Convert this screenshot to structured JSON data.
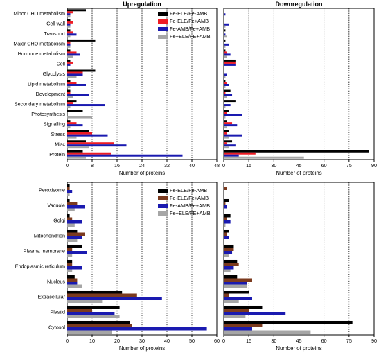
{
  "colors": {
    "Fe-ELE/Fe-AMB": "#000000",
    "Fe-ELE/Fe+AMB_top": "#ee1c24",
    "Fe-ELE/Fe+AMB_bottom": "#7b3a1e",
    "Fe-AMB/Fe+AMB": "#1a1ab0",
    "Fe+ELE/FE+AMB": "#a6a6a6"
  },
  "chart_data": [
    {
      "type": "bar",
      "orientation": "horizontal",
      "title": "Upregulation",
      "xlabel": "Number of proteins",
      "xlim": [
        0,
        48
      ],
      "ticks": [
        0,
        8,
        16,
        24,
        32,
        40,
        48
      ],
      "legend_position": "top-right",
      "categories": [
        "Minor CHO metabolism",
        "Cell wall",
        "Transport",
        "Major CHO metabolism",
        "Hormone metabolism",
        "Cell",
        "Glycolysis",
        "Lipid metabolism",
        "Development",
        "Secondary metabolism",
        "Photosynthesis",
        "Signalling",
        "Stress",
        "Misc",
        "Protein"
      ],
      "series": [
        {
          "name": "Fe-ELE/Fe-AMB",
          "color_key": "Fe-ELE/Fe-AMB",
          "values": [
            6,
            1,
            1,
            9,
            1,
            1,
            9,
            1,
            1,
            3,
            5,
            1,
            7,
            6,
            5
          ]
        },
        {
          "name": "Fe-ELE/Fe+AMB",
          "color_key": "Fe-ELE/Fe+AMB_top",
          "values": [
            2,
            2,
            2,
            1,
            3,
            2,
            5,
            3,
            1,
            2,
            0,
            3,
            8,
            15,
            14
          ]
        },
        {
          "name": "Fe-AMB/Fe+AMB",
          "color_key": "Fe-AMB/Fe+AMB",
          "values": [
            1,
            1,
            3,
            1,
            4,
            1,
            5,
            6,
            7,
            12,
            0,
            5,
            13,
            19,
            37
          ]
        },
        {
          "name": "Fe+ELE/FE+AMB",
          "color_key": "Fe+ELE/FE+AMB",
          "values": [
            1,
            1,
            1,
            1,
            2,
            0,
            3,
            1,
            2,
            1,
            8,
            1,
            3,
            7,
            6
          ]
        }
      ]
    },
    {
      "type": "bar",
      "orientation": "horizontal",
      "title": "Downregulation",
      "xlabel": "Number of proteins",
      "xlim": [
        0,
        90
      ],
      "ticks": [
        0,
        15,
        30,
        45,
        60,
        75,
        90
      ],
      "categories": [
        "Minor CHO metabolism",
        "Cell wall",
        "Transport",
        "Major CHO metabolism",
        "Hormone metabolism",
        "Cell",
        "Glycolysis",
        "Lipid metabolism",
        "Development",
        "Secondary metabolism",
        "Photosynthesis",
        "Signalling",
        "Stress",
        "Misc",
        "Protein"
      ],
      "series": [
        {
          "name": "Fe-ELE/Fe-AMB",
          "color_key": "Fe-ELE/Fe-AMB",
          "values": [
            0,
            0,
            1,
            1,
            1,
            7,
            0,
            1,
            4,
            7,
            3,
            2,
            3,
            5,
            87
          ]
        },
        {
          "name": "Fe-ELE/Fe+AMB",
          "color_key": "Fe-ELE/Fe+AMB_top",
          "values": [
            0,
            0,
            0,
            0,
            2,
            7,
            0,
            2,
            1,
            0,
            2,
            5,
            2,
            2,
            19
          ]
        },
        {
          "name": "Fe-AMB/Fe+AMB",
          "color_key": "Fe-AMB/Fe+AMB",
          "values": [
            1,
            3,
            1,
            3,
            4,
            7,
            2,
            3,
            5,
            4,
            11,
            8,
            11,
            7,
            9
          ]
        },
        {
          "name": "Fe+ELE/FE+AMB",
          "color_key": "Fe+ELE/FE+AMB",
          "values": [
            0,
            1,
            2,
            1,
            2,
            0,
            1,
            1,
            2,
            1,
            1,
            2,
            3,
            3,
            48
          ]
        }
      ]
    },
    {
      "type": "bar",
      "orientation": "horizontal",
      "xlabel": "Number of proteins",
      "xlim": [
        0,
        60
      ],
      "ticks": [
        0,
        10,
        20,
        30,
        40,
        50,
        60
      ],
      "legend_position": "top-right",
      "categories": [
        "Peroxisome",
        "Vacuole",
        "Golgi",
        "Mitochondrion",
        "Plasma membrane",
        "Endoplasmic reticulum",
        "Nucleus",
        "Extracellular",
        "Plastid",
        "Cytosol"
      ],
      "series": [
        {
          "name": "Fe-ELE/Fe-AMB",
          "color_key": "Fe-ELE/Fe-AMB",
          "values": [
            1,
            1,
            1,
            4,
            6,
            2,
            3,
            22,
            21,
            25
          ]
        },
        {
          "name": "Fe-ELE/Fe+AMB",
          "color_key": "Fe-ELE/Fe+AMB_bottom",
          "values": [
            1,
            4,
            2,
            7,
            2,
            2,
            4,
            28,
            10,
            26
          ]
        },
        {
          "name": "Fe-AMB/Fe+AMB",
          "color_key": "Fe-AMB/Fe+AMB",
          "values": [
            2,
            7,
            6,
            6,
            8,
            6,
            4,
            38,
            19,
            56
          ]
        },
        {
          "name": "Fe+ELE/FE+AMB",
          "color_key": "Fe+ELE/FE+AMB",
          "values": [
            1,
            3,
            3,
            4,
            2,
            2,
            6,
            14,
            21,
            18
          ]
        }
      ]
    },
    {
      "type": "bar",
      "orientation": "horizontal",
      "xlabel": "Number of proteins",
      "xlim": [
        0,
        90
      ],
      "ticks": [
        0,
        15,
        30,
        45,
        60,
        75,
        90
      ],
      "categories": [
        "Peroxisome",
        "Vacuole",
        "Golgi",
        "Mitochondrion",
        "Plasma membrane",
        "Endoplasmic reticulum",
        "Nucleus",
        "Extracellular",
        "Plastid",
        "Cytosol"
      ],
      "series": [
        {
          "name": "Fe-ELE/Fe-AMB",
          "color_key": "Fe-ELE/Fe-AMB",
          "values": [
            0,
            3,
            4,
            3,
            6,
            8,
            8,
            15,
            23,
            77
          ]
        },
        {
          "name": "Fe-ELE/Fe+AMB",
          "color_key": "Fe-ELE/Fe+AMB_bottom",
          "values": [
            2,
            1,
            2,
            2,
            6,
            9,
            17,
            3,
            15,
            23
          ]
        },
        {
          "name": "Fe-AMB/Fe+AMB",
          "color_key": "Fe-AMB/Fe+AMB",
          "values": [
            0,
            2,
            4,
            3,
            5,
            6,
            14,
            17,
            37,
            17
          ]
        },
        {
          "name": "Fe+ELE/FE+AMB",
          "color_key": "Fe+ELE/FE+AMB",
          "values": [
            0,
            0,
            1,
            0,
            3,
            4,
            14,
            9,
            13,
            52
          ]
        }
      ]
    }
  ]
}
